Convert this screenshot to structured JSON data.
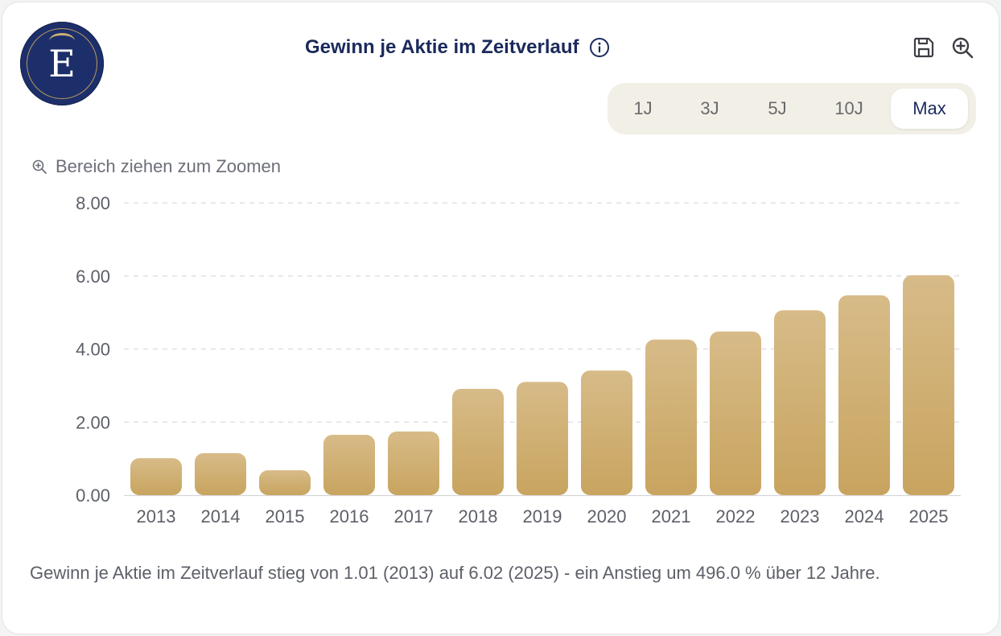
{
  "header": {
    "logo_letter": "E",
    "title": "Gewinn je Aktie im Zeitverlauf"
  },
  "icons": {
    "info": "info-icon",
    "save": "save-icon",
    "zoom": "zoom-in-icon",
    "hint": "zoom-in-icon"
  },
  "range_selector": {
    "options": [
      "1J",
      "3J",
      "5J",
      "10J",
      "Max"
    ],
    "selected": "Max"
  },
  "hint": "Bereich ziehen zum Zoomen",
  "colors": {
    "brand_navy": "#1b2a5c",
    "bar_top": "#d7bb88",
    "bar_bottom": "#c8a45f"
  },
  "chart_data": {
    "type": "bar",
    "categories": [
      "2013",
      "2014",
      "2015",
      "2016",
      "2017",
      "2018",
      "2019",
      "2020",
      "2021",
      "2022",
      "2023",
      "2024",
      "2025"
    ],
    "values": [
      1.01,
      1.15,
      0.68,
      1.65,
      1.74,
      2.91,
      3.1,
      3.41,
      4.26,
      4.48,
      5.06,
      5.47,
      6.02
    ],
    "y_ticks": [
      "0.00",
      "2.00",
      "4.00",
      "6.00",
      "8.00"
    ],
    "ylim": [
      0,
      8
    ],
    "grid": true
  },
  "caption": "Gewinn je Aktie im Zeitverlauf stieg von 1.01 (2013) auf 6.02 (2025) - ein Anstieg um 496.0 % über 12 Jahre."
}
